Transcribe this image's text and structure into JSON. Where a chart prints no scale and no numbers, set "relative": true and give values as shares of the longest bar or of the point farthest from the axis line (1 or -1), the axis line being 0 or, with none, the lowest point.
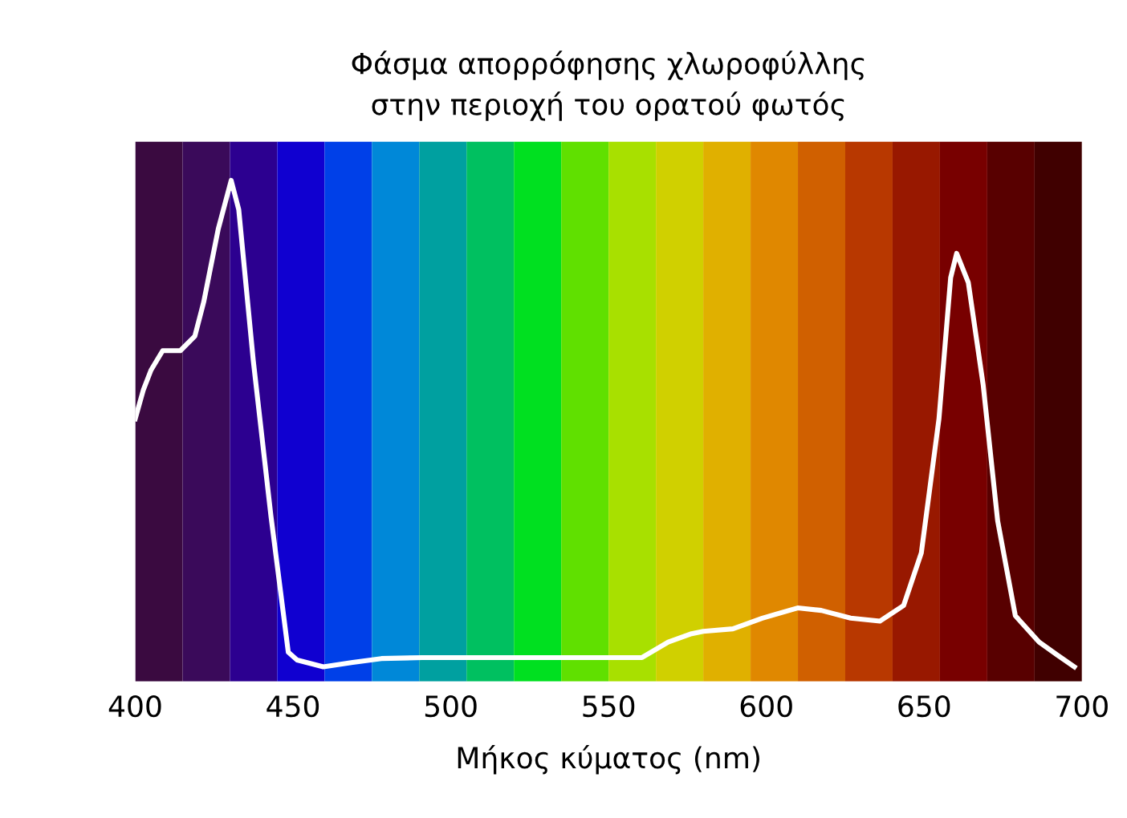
{
  "chart_data": {
    "type": "line",
    "title": "Φάσμα απορρόφησης χλωροφύλλης\nστην περιοχή του ορατού φωτός",
    "xlabel": "Μήκος κύματος (nm)",
    "relative": true,
    "xlim": [
      400,
      700
    ],
    "xticks": [
      400,
      450,
      500,
      550,
      600,
      650,
      700
    ],
    "tick_labels": "x",
    "grid": false,
    "legend": false,
    "line_style": "solid",
    "marker": "none",
    "bands": [
      {
        "axis": "x",
        "from": 400,
        "to": 415,
        "color": "#3a0a40"
      },
      {
        "axis": "x",
        "from": 415,
        "to": 430,
        "color": "#3a0a5a"
      },
      {
        "axis": "x",
        "from": 430,
        "to": 445,
        "color": "#2c0090"
      },
      {
        "axis": "x",
        "from": 445,
        "to": 460,
        "color": "#1000d0"
      },
      {
        "axis": "x",
        "from": 460,
        "to": 475,
        "color": "#0040e8"
      },
      {
        "axis": "x",
        "from": 475,
        "to": 490,
        "color": "#0088d8"
      },
      {
        "axis": "x",
        "from": 490,
        "to": 505,
        "color": "#00a0a0"
      },
      {
        "axis": "x",
        "from": 505,
        "to": 520,
        "color": "#00c060"
      },
      {
        "axis": "x",
        "from": 520,
        "to": 535,
        "color": "#00e020"
      },
      {
        "axis": "x",
        "from": 535,
        "to": 550,
        "color": "#60e000"
      },
      {
        "axis": "x",
        "from": 550,
        "to": 565,
        "color": "#a8e000"
      },
      {
        "axis": "x",
        "from": 565,
        "to": 580,
        "color": "#d0d000"
      },
      {
        "axis": "x",
        "from": 580,
        "to": 595,
        "color": "#e0b000"
      },
      {
        "axis": "x",
        "from": 595,
        "to": 610,
        "color": "#e08800"
      },
      {
        "axis": "x",
        "from": 610,
        "to": 625,
        "color": "#d06000"
      },
      {
        "axis": "x",
        "from": 625,
        "to": 640,
        "color": "#b83800"
      },
      {
        "axis": "x",
        "from": 640,
        "to": 655,
        "color": "#981800"
      },
      {
        "axis": "x",
        "from": 655,
        "to": 670,
        "color": "#780000"
      },
      {
        "axis": "x",
        "from": 670,
        "to": 685,
        "color": "#580000"
      },
      {
        "axis": "x",
        "from": 685,
        "to": 700,
        "color": "#400000"
      }
    ],
    "series": [
      {
        "color": "#ffffff",
        "x": [
          400,
          402.6,
          405,
          408.7,
          414.3,
          418.9,
          421.7,
          426.3,
          430.4,
          432.8,
          437.4,
          443,
          448.5,
          451.3,
          459.6,
          468.9,
          478,
          491,
          509.6,
          528,
          560.6,
          568.9,
          576.3,
          580,
          589.4,
          598.7,
          609.9,
          617.4,
          626.7,
          636,
          643.5,
          649.1,
          654.7,
          658.4,
          660.3,
          664,
          668.7,
          673.3,
          678.9,
          686.4,
          692,
          697.6
        ],
        "values": [
          0.51,
          0.57,
          0.61,
          0.65,
          0.65,
          0.68,
          0.75,
          0.9,
          1.0,
          0.94,
          0.63,
          0.31,
          0.03,
          0.014,
          0,
          0.009,
          0.017,
          0.019,
          0.019,
          0.019,
          0.019,
          0.051,
          0.068,
          0.073,
          0.078,
          0.1,
          0.121,
          0.116,
          0.1,
          0.094,
          0.126,
          0.234,
          0.51,
          0.8,
          0.85,
          0.79,
          0.58,
          0.3,
          0.105,
          0.051,
          0.025,
          0
        ]
      }
    ]
  }
}
